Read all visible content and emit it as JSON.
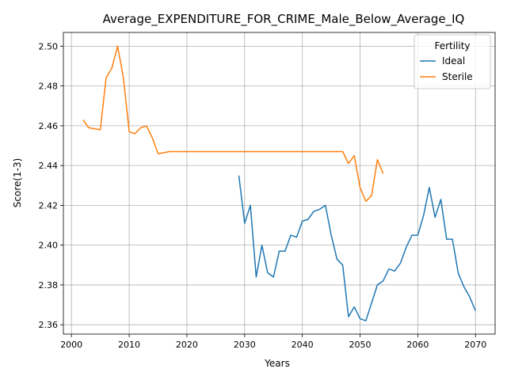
{
  "chart_data": {
    "type": "line",
    "title": "Average_EXPENDITURE_FOR_CRIME_Male_Below_Average_IQ",
    "xlabel": "Years",
    "ylabel": "Score(1-3)",
    "xlim": [
      1998.6,
      2073.4
    ],
    "ylim": [
      2.3553,
      2.5069
    ],
    "xticks": [
      2000,
      2010,
      2020,
      2030,
      2040,
      2050,
      2060,
      2070
    ],
    "yticks": [
      2.36,
      2.38,
      2.4,
      2.42,
      2.44,
      2.46,
      2.48,
      2.5
    ],
    "xtick_labels": [
      "2000",
      "2010",
      "2020",
      "2030",
      "2040",
      "2050",
      "2060",
      "2070"
    ],
    "ytick_labels": [
      "2.36",
      "2.38",
      "2.40",
      "2.42",
      "2.44",
      "2.46",
      "2.48",
      "2.50"
    ],
    "grid": true,
    "legend": {
      "title": "Fertility",
      "position": "top-right"
    },
    "series": [
      {
        "name": "Ideal",
        "color": "#1f77b4",
        "x": [
          2029,
          2030,
          2031,
          2032,
          2033,
          2034,
          2035,
          2036,
          2037,
          2038,
          2039,
          2040,
          2041,
          2042,
          2043,
          2044,
          2045,
          2046,
          2047,
          2048,
          2049,
          2050,
          2051,
          2052,
          2053,
          2054,
          2055,
          2056,
          2057,
          2058,
          2059,
          2060,
          2061,
          2062,
          2063,
          2064,
          2065,
          2066,
          2067,
          2068,
          2069,
          2070
        ],
        "y": [
          2.435,
          2.411,
          2.42,
          2.384,
          2.4,
          2.386,
          2.384,
          2.397,
          2.397,
          2.405,
          2.404,
          2.412,
          2.413,
          2.417,
          2.418,
          2.42,
          2.405,
          2.393,
          2.39,
          2.364,
          2.369,
          2.363,
          2.362,
          2.371,
          2.38,
          2.382,
          2.388,
          2.387,
          2.391,
          2.399,
          2.405,
          2.405,
          2.415,
          2.429,
          2.414,
          2.423,
          2.403,
          2.403,
          2.386,
          2.379,
          2.374,
          2.367
        ]
      },
      {
        "name": "Sterile",
        "color": "#ff7f0e",
        "x": [
          2002,
          2003,
          2005,
          2006,
          2007,
          2008,
          2009,
          2010,
          2011,
          2012,
          2013,
          2014,
          2015,
          2017,
          2020,
          2025,
          2030,
          2035,
          2040,
          2045,
          2047,
          2048,
          2049,
          2050,
          2051,
          2052,
          2053,
          2054
        ],
        "y": [
          2.463,
          2.459,
          2.458,
          2.484,
          2.489,
          2.5,
          2.484,
          2.457,
          2.456,
          2.459,
          2.46,
          2.454,
          2.446,
          2.447,
          2.447,
          2.447,
          2.447,
          2.447,
          2.447,
          2.447,
          2.447,
          2.441,
          2.445,
          2.429,
          2.422,
          2.425,
          2.443,
          2.436
        ]
      }
    ]
  }
}
